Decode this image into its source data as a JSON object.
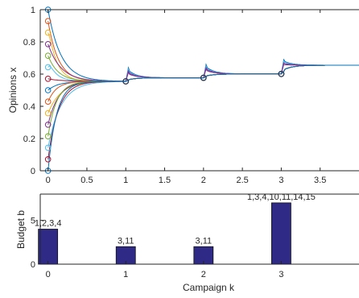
{
  "chart_data": [
    {
      "type": "line",
      "xlabel": "",
      "ylabel": "Opinions x",
      "xlim": [
        -0.1,
        4.0
      ],
      "ylim": [
        0,
        1
      ],
      "xticks": [
        0,
        0.5,
        1,
        1.5,
        2,
        2.5,
        3,
        3.5
      ],
      "xtick_labels": [
        "0",
        "0.5",
        "1",
        "1.5",
        "2",
        "2.5",
        "3",
        "3.5"
      ],
      "yticks": [
        0,
        0.2,
        0.4,
        0.6,
        0.8,
        1
      ],
      "ytick_labels": [
        "0",
        "0.2",
        "0.4",
        "0.6",
        "0.8",
        "1"
      ],
      "grid": false,
      "initial_opinions": [
        1.0,
        0.929,
        0.857,
        0.786,
        0.714,
        0.643,
        0.571,
        0.5,
        0.429,
        0.357,
        0.286,
        0.214,
        0.143,
        0.071,
        0.0
      ],
      "consensus_after_campaign": [
        {
          "k": 1,
          "x": 0.555
        },
        {
          "k": 2,
          "x": 0.577
        },
        {
          "k": 3,
          "x": 0.601
        },
        {
          "k": 4,
          "x": 0.655
        }
      ],
      "campaign_kicks": [
        {
          "k": 1,
          "peak": 0.64
        },
        {
          "k": 2,
          "peak": 0.66
        },
        {
          "k": 3,
          "peak": 0.69
        }
      ],
      "series_colors": [
        "#0072BD",
        "#D95319",
        "#EDB120",
        "#7E2F8E",
        "#77AC30",
        "#4DBEEE",
        "#A2142F"
      ]
    },
    {
      "type": "bar",
      "xlabel": "Campaign k",
      "ylabel": "Budget b",
      "categories": [
        "0",
        "1",
        "2",
        "3"
      ],
      "values": [
        4,
        2,
        2,
        7
      ],
      "data_labels": [
        "1,2,3,4",
        "3,11",
        "3,11",
        "1,3,4,10,11,14,15"
      ],
      "ylim": [
        0,
        8
      ],
      "yticks": [
        0,
        5
      ],
      "ytick_labels": [
        "0",
        "5"
      ],
      "bar_color": "#2E2A85",
      "grid": false
    }
  ]
}
